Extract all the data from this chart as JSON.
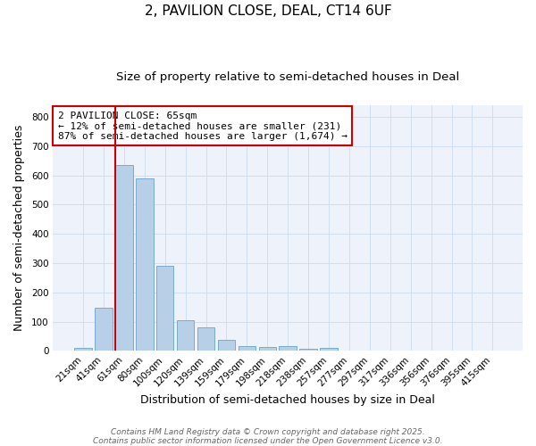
{
  "title": "2, PAVILION CLOSE, DEAL, CT14 6UF",
  "subtitle": "Size of property relative to semi-detached houses in Deal",
  "xlabel": "Distribution of semi-detached houses by size in Deal",
  "ylabel": "Number of semi-detached properties",
  "categories": [
    "21sqm",
    "41sqm",
    "61sqm",
    "80sqm",
    "100sqm",
    "120sqm",
    "139sqm",
    "159sqm",
    "179sqm",
    "198sqm",
    "218sqm",
    "238sqm",
    "257sqm",
    "277sqm",
    "297sqm",
    "317sqm",
    "336sqm",
    "356sqm",
    "376sqm",
    "395sqm",
    "415sqm"
  ],
  "values": [
    10,
    148,
    635,
    588,
    290,
    105,
    80,
    38,
    15,
    13,
    15,
    6,
    10,
    0,
    0,
    0,
    0,
    0,
    0,
    0,
    0
  ],
  "bar_color": "#b8cfe8",
  "bar_edge_color": "#7aaad0",
  "grid_color": "#d0dff0",
  "background_color": "#eef2fa",
  "vline_index": 2,
  "vline_color": "#cc0000",
  "annotation_line1": "2 PAVILION CLOSE: 65sqm",
  "annotation_line2": "← 12% of semi-detached houses are smaller (231)",
  "annotation_line3": "87% of semi-detached houses are larger (1,674) →",
  "annotation_box_color": "#cc0000",
  "ylim": [
    0,
    840
  ],
  "yticks": [
    0,
    100,
    200,
    300,
    400,
    500,
    600,
    700,
    800
  ],
  "footer_line1": "Contains HM Land Registry data © Crown copyright and database right 2025.",
  "footer_line2": "Contains public sector information licensed under the Open Government Licence v3.0.",
  "title_fontsize": 11,
  "subtitle_fontsize": 9.5,
  "axis_label_fontsize": 9,
  "tick_fontsize": 7.5,
  "annotation_fontsize": 8,
  "footer_fontsize": 6.5
}
